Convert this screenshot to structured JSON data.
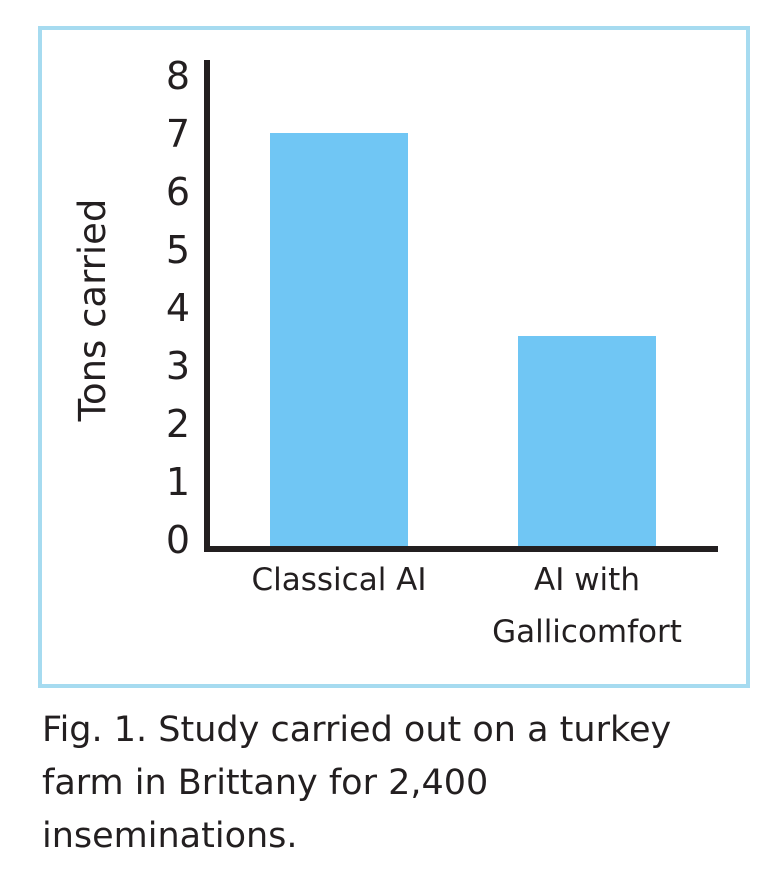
{
  "chart_data": {
    "type": "bar",
    "categories": [
      [
        "Classical AI"
      ],
      [
        "AI with",
        "Gallicomfort"
      ]
    ],
    "values": [
      7,
      3.5
    ],
    "ylabel": "Tons carried",
    "ylim": [
      0,
      8
    ],
    "yticks": [
      0,
      1,
      2,
      3,
      4,
      5,
      6,
      7,
      8
    ],
    "bar_color": "#70c6f4",
    "axis_color": "#231f20",
    "grid": false
  },
  "caption": "Fig. 1. Study carried out on a turkey farm in Brittany for 2,400 inseminations.",
  "frame_color": "#a6dbf0"
}
